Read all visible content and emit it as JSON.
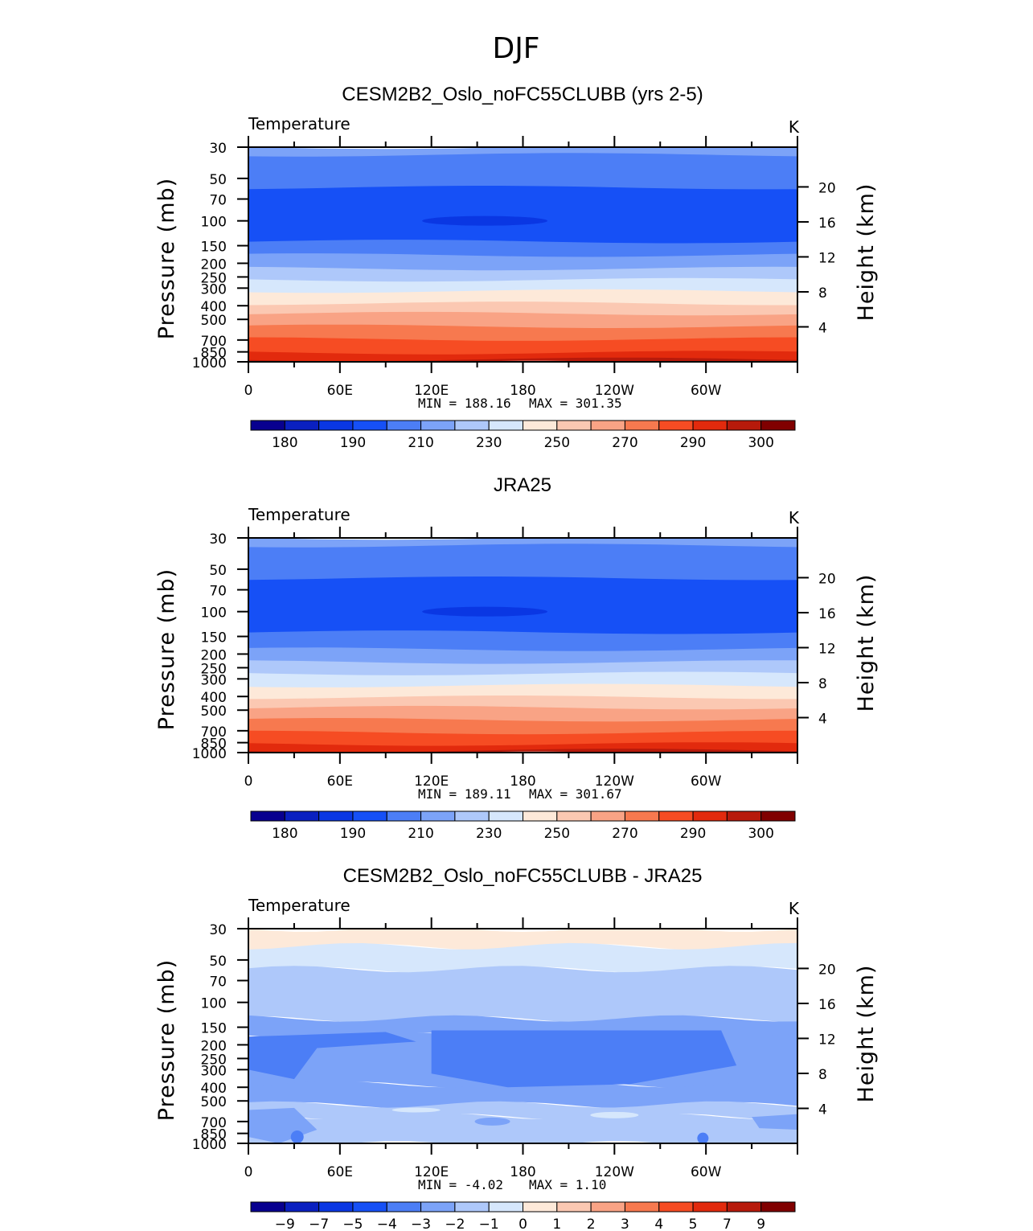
{
  "figure_title": "DJF",
  "palette": {
    "full": [
      "#08008f",
      "#0a20c0",
      "#0a37e3",
      "#1650f6",
      "#4c7ef6",
      "#7ca3f8",
      "#aec8fa",
      "#d6e7fc",
      "#fde9d9",
      "#fbc8b2",
      "#f9a385",
      "#f7794f",
      "#f64c23",
      "#e22a0d",
      "#b71a0b",
      "#800000"
    ],
    "blue_stops": [
      {
        "t": 0,
        "c": "#2254f6"
      },
      {
        "t": 0.16,
        "c": "#1a4ff7"
      },
      {
        "t": 0.25,
        "c": "#1a4ff7"
      },
      {
        "t": 0.35,
        "c": "#4c7ef6"
      },
      {
        "t": 0.5,
        "c": "#aec8fa"
      },
      {
        "t": 0.6,
        "c": "#d6e7fc"
      }
    ]
  },
  "chart_data": [
    {
      "type": "heatmap",
      "panel_id": "model",
      "title": "CESM2B2_Oslo_noFC55CLUBB (yrs 2-5)",
      "variable": "Temperature",
      "units": "K",
      "ylabel": "Pressure (mb)",
      "y2label": "Height (km)",
      "x_ticks": [
        "0",
        "60E",
        "120E",
        "180",
        "120W",
        "60W"
      ],
      "x_range": [
        0,
        360
      ],
      "y_ticks": [
        "30",
        "50",
        "70",
        "100",
        "150",
        "200",
        "250",
        "300",
        "400",
        "500",
        "700",
        "850",
        "1000"
      ],
      "y_values": [
        30,
        50,
        70,
        100,
        150,
        200,
        250,
        300,
        400,
        500,
        700,
        850,
        1000
      ],
      "y2_ticks": [
        "20",
        "16",
        "12",
        "8",
        "4"
      ],
      "y2_values": [
        20,
        16,
        12,
        8,
        4
      ],
      "min_label": "MIN = 188.16",
      "max_label": "MAX = 301.35",
      "min": 188.16,
      "max": 301.35,
      "bands": [
        {
          "p_top": 30,
          "p_bot": 34,
          "level": 5
        },
        {
          "p_top": 34,
          "p_bot": 58,
          "level": 4
        },
        {
          "p_top": 58,
          "p_bot": 140,
          "level": 3
        },
        {
          "p_top": 140,
          "p_bot": 175,
          "level": 4
        },
        {
          "p_top": 175,
          "p_bot": 218,
          "level": 5
        },
        {
          "p_top": 218,
          "p_bot": 262,
          "level": 6
        },
        {
          "p_top": 262,
          "p_bot": 315,
          "level": 7
        },
        {
          "p_top": 315,
          "p_bot": 385,
          "level": 8
        },
        {
          "p_top": 385,
          "p_bot": 455,
          "level": 9
        },
        {
          "p_top": 455,
          "p_bot": 560,
          "level": 10
        },
        {
          "p_top": 560,
          "p_bot": 690,
          "level": 11
        },
        {
          "p_top": 690,
          "p_bot": 860,
          "level": 12
        },
        {
          "p_top": 860,
          "p_bot": 960,
          "level": 13
        },
        {
          "p_top": 960,
          "p_bot": 1000,
          "level": 14
        }
      ],
      "cold_core": {
        "lon": 155,
        "p": 100,
        "level": 2
      },
      "colorbar_labels": [
        "180",
        "190",
        "210",
        "230",
        "250",
        "270",
        "290",
        "300"
      ]
    },
    {
      "type": "heatmap",
      "panel_id": "obs",
      "title": "JRA25",
      "variable": "Temperature",
      "units": "K",
      "ylabel": "Pressure (mb)",
      "y2label": "Height (km)",
      "x_ticks": [
        "0",
        "60E",
        "120E",
        "180",
        "120W",
        "60W"
      ],
      "x_range": [
        0,
        360
      ],
      "y_ticks": [
        "30",
        "50",
        "70",
        "100",
        "150",
        "200",
        "250",
        "300",
        "400",
        "500",
        "700",
        "850",
        "1000"
      ],
      "y_values": [
        30,
        50,
        70,
        100,
        150,
        200,
        250,
        300,
        400,
        500,
        700,
        850,
        1000
      ],
      "y2_ticks": [
        "20",
        "16",
        "12",
        "8",
        "4"
      ],
      "y2_values": [
        20,
        16,
        12,
        8,
        4
      ],
      "min_label": "MIN = 189.11",
      "max_label": "MAX = 301.67",
      "min": 189.11,
      "max": 301.67,
      "bands": [
        {
          "p_top": 30,
          "p_bot": 34,
          "level": 5
        },
        {
          "p_top": 34,
          "p_bot": 58,
          "level": 4
        },
        {
          "p_top": 58,
          "p_bot": 140,
          "level": 3
        },
        {
          "p_top": 140,
          "p_bot": 185,
          "level": 4
        },
        {
          "p_top": 185,
          "p_bot": 228,
          "level": 5
        },
        {
          "p_top": 228,
          "p_bot": 275,
          "level": 6
        },
        {
          "p_top": 275,
          "p_bot": 335,
          "level": 7
        },
        {
          "p_top": 335,
          "p_bot": 405,
          "level": 8
        },
        {
          "p_top": 405,
          "p_bot": 480,
          "level": 9
        },
        {
          "p_top": 480,
          "p_bot": 585,
          "level": 10
        },
        {
          "p_top": 585,
          "p_bot": 720,
          "level": 11
        },
        {
          "p_top": 720,
          "p_bot": 870,
          "level": 12
        },
        {
          "p_top": 870,
          "p_bot": 965,
          "level": 13
        },
        {
          "p_top": 965,
          "p_bot": 1000,
          "level": 14
        }
      ],
      "cold_core": {
        "lon": 155,
        "p": 100,
        "level": 2
      },
      "colorbar_labels": [
        "180",
        "190",
        "210",
        "230",
        "250",
        "270",
        "290",
        "300"
      ]
    },
    {
      "type": "heatmap",
      "panel_id": "diff",
      "title": "CESM2B2_Oslo_noFC55CLUBB - JRA25",
      "variable": "Temperature",
      "units": "K",
      "ylabel": "Pressure (mb)",
      "y2label": "Height (km)",
      "x_ticks": [
        "0",
        "60E",
        "120E",
        "180",
        "120W",
        "60W"
      ],
      "x_range": [
        0,
        360
      ],
      "y_ticks": [
        "30",
        "50",
        "70",
        "100",
        "150",
        "200",
        "250",
        "300",
        "400",
        "500",
        "700",
        "850",
        "1000"
      ],
      "y_values": [
        30,
        50,
        70,
        100,
        150,
        200,
        250,
        300,
        400,
        500,
        700,
        850,
        1000
      ],
      "y2_ticks": [
        "20",
        "16",
        "12",
        "8",
        "4"
      ],
      "y2_values": [
        20,
        16,
        12,
        8,
        4
      ],
      "min_label": "MIN = -4.02",
      "max_label": "MAX = 1.10",
      "min": -4.02,
      "max": 1.1,
      "bands": [
        {
          "p_top": 30,
          "p_bot": 40,
          "level": 8
        },
        {
          "p_top": 40,
          "p_bot": 58,
          "level": 7
        },
        {
          "p_top": 58,
          "p_bot": 130,
          "level": 6
        },
        {
          "p_top": 130,
          "p_bot": 170,
          "level": 5
        },
        {
          "p_top": 170,
          "p_bot": 380,
          "level": 5
        },
        {
          "p_top": 380,
          "p_bot": 530,
          "level": 5
        },
        {
          "p_top": 530,
          "p_bot": 640,
          "level": 6
        },
        {
          "p_top": 640,
          "p_bot": 1000,
          "level": 6
        }
      ],
      "cold_core": null,
      "colorbar_labels": [
        "−9",
        "−7",
        "−5",
        "−4",
        "−3",
        "−2",
        "−1",
        "0",
        "1",
        "2",
        "3",
        "4",
        "5",
        "7",
        "9"
      ]
    }
  ]
}
